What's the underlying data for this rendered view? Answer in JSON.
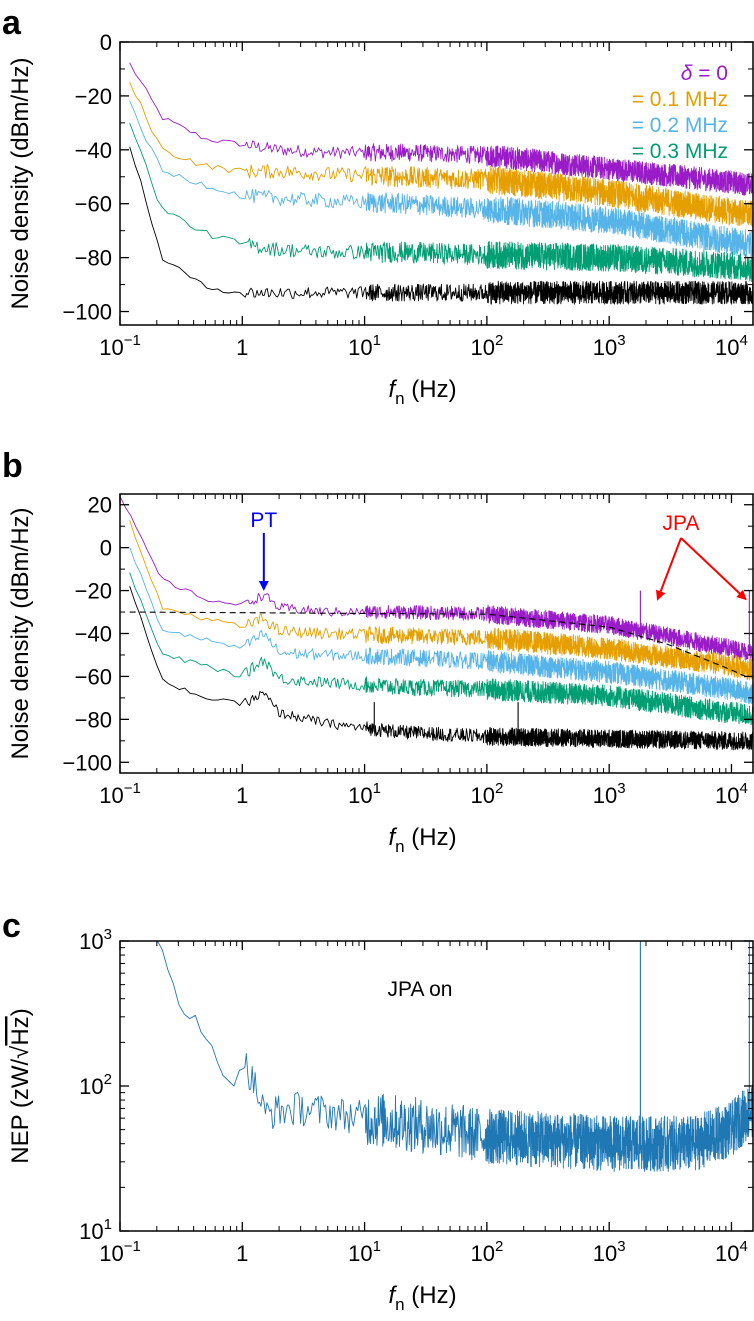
{
  "chart_data": [
    {
      "panel": "a",
      "type": "line",
      "xscale": "log",
      "xlim": [
        0.1,
        15000
      ],
      "ylim": [
        -105,
        0
      ],
      "xlabel": "f",
      "xlabel_sub": "n",
      "xlabel_unit": "(Hz)",
      "ylabel": "Noise density (dBm/Hz)",
      "xticks": [
        0.1,
        1,
        10,
        100,
        1000,
        10000
      ],
      "xtick_labels": [
        {
          "base": "10",
          "exp": "−1"
        },
        {
          "base": "1",
          "exp": ""
        },
        {
          "base": "10",
          "exp": "1"
        },
        {
          "base": "10",
          "exp": "2"
        },
        {
          "base": "10",
          "exp": "3"
        },
        {
          "base": "10",
          "exp": "4"
        }
      ],
      "yticks": [
        0,
        -20,
        -40,
        -60,
        -80,
        -100
      ],
      "ytick_labels": [
        "0",
        "−20",
        "−40",
        "−60",
        "−80",
        "−100"
      ],
      "grid": false,
      "legend_position": "top-right",
      "legend": [
        {
          "symbol": "δ",
          "text": " = 0",
          "color": "#9a1bc8"
        },
        {
          "text": "= 0.1 MHz",
          "color": "#e69f00"
        },
        {
          "text": "= 0.2 MHz",
          "color": "#56b4e9"
        },
        {
          "text": "= 0.3 MHz",
          "color": "#009e73"
        }
      ],
      "series": [
        {
          "color": "#9a1bc8",
          "x": [
            0.12,
            0.22,
            0.5,
            1,
            2,
            5,
            20,
            100,
            1000,
            10000,
            15000
          ],
          "y": [
            -8,
            -28,
            -36,
            -38,
            -40,
            -41,
            -41,
            -42,
            -47,
            -52,
            -53
          ],
          "noise": 2.5
        },
        {
          "color": "#e69f00",
          "x": [
            0.12,
            0.22,
            0.5,
            1,
            2,
            5,
            20,
            100,
            1000,
            10000,
            15000
          ],
          "y": [
            -15,
            -40,
            -46,
            -48,
            -48,
            -49,
            -50,
            -51,
            -56,
            -63,
            -64
          ],
          "noise": 3
        },
        {
          "color": "#56b4e9",
          "x": [
            0.12,
            0.22,
            0.5,
            1,
            2,
            5,
            20,
            100,
            1000,
            10000,
            15000
          ],
          "y": [
            -23,
            -48,
            -53,
            -57,
            -58,
            -59,
            -60,
            -62,
            -66,
            -74,
            -75
          ],
          "noise": 3
        },
        {
          "color": "#009e73",
          "x": [
            0.12,
            0.22,
            0.5,
            1,
            2,
            5,
            20,
            100,
            1000,
            10000,
            15000
          ],
          "y": [
            -30,
            -62,
            -71,
            -75,
            -77,
            -78,
            -78,
            -79,
            -80,
            -83,
            -84
          ],
          "noise": 3
        },
        {
          "color": "#000000",
          "x": [
            0.12,
            0.22,
            0.5,
            1,
            2,
            5,
            20,
            100,
            1000,
            10000,
            15000
          ],
          "y": [
            -38,
            -80,
            -91,
            -93,
            -93,
            -93,
            -93,
            -93,
            -93,
            -93,
            -93
          ],
          "noise": 2.5
        }
      ]
    },
    {
      "panel": "b",
      "type": "line",
      "xscale": "log",
      "xlim": [
        0.1,
        15000
      ],
      "ylim": [
        -105,
        25
      ],
      "xlabel": "f",
      "xlabel_sub": "n",
      "xlabel_unit": "(Hz)",
      "ylabel": "Noise density (dBm/Hz)",
      "xticks": [
        0.1,
        1,
        10,
        100,
        1000,
        10000
      ],
      "xtick_labels": [
        {
          "base": "10",
          "exp": "−1"
        },
        {
          "base": "1",
          "exp": ""
        },
        {
          "base": "10",
          "exp": "1"
        },
        {
          "base": "10",
          "exp": "2"
        },
        {
          "base": "10",
          "exp": "3"
        },
        {
          "base": "10",
          "exp": "4"
        }
      ],
      "yticks": [
        20,
        0,
        -20,
        -40,
        -60,
        -80,
        -100
      ],
      "ytick_labels": [
        "20",
        "0",
        "−20",
        "−40",
        "−60",
        "−80",
        "−100"
      ],
      "grid": false,
      "annotations": [
        {
          "text": "PT",
          "color": "#0000ff",
          "x": 1.5,
          "y": -22
        },
        {
          "text": "JPA",
          "color": "#ff0000",
          "targets": [
            {
              "x": 2500,
              "y": -22
            },
            {
              "x": 13000,
              "y": -22
            }
          ]
        }
      ],
      "dashed_fit": {
        "x": [
          0.12,
          100,
          1000,
          3000,
          10000,
          13000
        ],
        "y": [
          -30,
          -31,
          -37,
          -45,
          -57,
          -60
        ]
      },
      "series": [
        {
          "color": "#9a1bc8",
          "x": [
            0.1,
            0.22,
            0.5,
            1,
            1.5,
            2,
            5,
            20,
            100,
            1000,
            10000,
            15000
          ],
          "y": [
            24,
            -15,
            -24,
            -27,
            -22,
            -28,
            -30,
            -30,
            -31,
            -36,
            -47,
            -49
          ],
          "noise": 2.5,
          "spikes": [
            {
              "x": 1800,
              "y": -20
            },
            {
              "x": 14000,
              "y": -20
            }
          ]
        },
        {
          "color": "#e69f00",
          "x": [
            0.12,
            0.22,
            0.5,
            1,
            1.5,
            2,
            5,
            20,
            100,
            1000,
            10000,
            15000
          ],
          "y": [
            12,
            -28,
            -33,
            -37,
            -33,
            -39,
            -40,
            -41,
            -42,
            -47,
            -55,
            -57
          ],
          "noise": 3
        },
        {
          "color": "#56b4e9",
          "x": [
            0.12,
            0.22,
            0.5,
            1,
            1.5,
            2,
            5,
            20,
            100,
            1000,
            10000,
            15000
          ],
          "y": [
            0,
            -38,
            -43,
            -47,
            -40,
            -49,
            -50,
            -51,
            -53,
            -58,
            -66,
            -68
          ],
          "noise": 3
        },
        {
          "color": "#009e73",
          "x": [
            0.12,
            0.22,
            0.5,
            1,
            1.5,
            2,
            5,
            20,
            100,
            1000,
            10000,
            15000
          ],
          "y": [
            -12,
            -50,
            -55,
            -60,
            -52,
            -61,
            -63,
            -65,
            -66,
            -69,
            -77,
            -78
          ],
          "noise": 3
        },
        {
          "color": "#000000",
          "x": [
            0.12,
            0.22,
            0.5,
            1,
            1.5,
            2,
            5,
            20,
            100,
            1000,
            10000,
            15000
          ],
          "y": [
            -18,
            -62,
            -70,
            -73,
            -68,
            -77,
            -82,
            -86,
            -88,
            -89,
            -90,
            -90
          ],
          "noise": 2.5,
          "spikes": [
            {
              "x": 12,
              "y": -72
            },
            {
              "x": 180,
              "y": -72
            }
          ]
        }
      ]
    },
    {
      "panel": "c",
      "type": "line",
      "xscale": "log",
      "yscale": "log",
      "xlim": [
        0.1,
        15000
      ],
      "ylim": [
        10,
        1000
      ],
      "xlabel": "f",
      "xlabel_sub": "n",
      "xlabel_unit": "(Hz)",
      "ylabel_pre": "NEP (zW/",
      "ylabel_sqrt": "Hz",
      "ylabel_post": ")",
      "xticks": [
        0.1,
        1,
        10,
        100,
        1000,
        10000
      ],
      "xtick_labels": [
        {
          "base": "10",
          "exp": "−1"
        },
        {
          "base": "1",
          "exp": ""
        },
        {
          "base": "10",
          "exp": "1"
        },
        {
          "base": "10",
          "exp": "2"
        },
        {
          "base": "10",
          "exp": "3"
        },
        {
          "base": "10",
          "exp": "4"
        }
      ],
      "yticks": [
        10,
        100,
        1000
      ],
      "ytick_labels": [
        {
          "base": "10",
          "exp": "1"
        },
        {
          "base": "10",
          "exp": "2"
        },
        {
          "base": "10",
          "exp": "3"
        }
      ],
      "grid": false,
      "annotation": "JPA on",
      "series": [
        {
          "color": "#1f77b4",
          "x": [
            0.2,
            0.3,
            0.5,
            0.8,
            1,
            1.5,
            3,
            10,
            100,
            1000,
            5000,
            10000,
            15000
          ],
          "y": [
            1000,
            400,
            200,
            100,
            150,
            65,
            70,
            60,
            45,
            40,
            40,
            50,
            70
          ],
          "noise": 0.12,
          "spikes": [
            {
              "x": 1800,
              "y": 1000
            },
            {
              "x": 14000,
              "y": 1000
            }
          ]
        }
      ]
    }
  ]
}
